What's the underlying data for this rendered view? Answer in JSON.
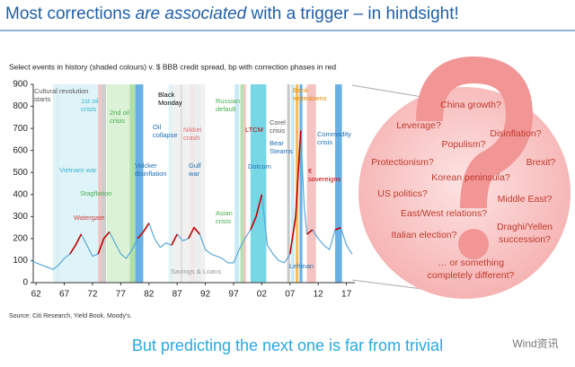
{
  "header": {
    "title": [
      "Most corrections ",
      "are associated",
      " with a trigger – in hindsight!"
    ]
  },
  "chart_data": {
    "type": "line",
    "subtitle": "Select events in history (shaded colours) v. $ BBB credit spread, bp with correction phases in red",
    "source": "Source: Citi Research, Yield Book, Moody's.",
    "xlim": [
      1961.5,
      2018.5
    ],
    "xticks": [
      {
        "value": 1962,
        "label": "62"
      },
      {
        "value": 1967,
        "label": "67"
      },
      {
        "value": 1972,
        "label": "72"
      },
      {
        "value": 1977,
        "label": "77"
      },
      {
        "value": 1982,
        "label": "82"
      },
      {
        "value": 1987,
        "label": "87"
      },
      {
        "value": 1992,
        "label": "92"
      },
      {
        "value": 1997,
        "label": "97"
      },
      {
        "value": 2002,
        "label": "02"
      },
      {
        "value": 2007,
        "label": "07"
      },
      {
        "value": 2012,
        "label": "12"
      },
      {
        "value": 2017,
        "label": "17"
      }
    ],
    "ylim": [
      0,
      900
    ],
    "yticks": [
      0,
      100,
      200,
      300,
      400,
      500,
      600,
      700,
      800,
      900
    ],
    "x": [
      1961,
      1962,
      1963,
      1964,
      1965,
      1966,
      1967,
      1968,
      1969,
      1970,
      1971,
      1972,
      1973,
      1974,
      1975,
      1976,
      1977,
      1978,
      1979,
      1980,
      1981,
      1982,
      1983,
      1984,
      1985,
      1986,
      1987,
      1988,
      1989,
      1990,
      1991,
      1992,
      1993,
      1994,
      1995,
      1996,
      1997,
      1998,
      1999,
      2000,
      2001,
      2002,
      2003,
      2004,
      2005,
      2006,
      2007,
      2008,
      2008.9,
      2009.5,
      2010,
      2011,
      2012,
      2013,
      2014,
      2015,
      2016,
      2017,
      2018
    ],
    "series": [
      {
        "color": "#4ea3d6",
        "values": [
          100,
          90,
          80,
          70,
          60,
          80,
          110,
          130,
          170,
          220,
          170,
          120,
          130,
          200,
          230,
          180,
          130,
          110,
          150,
          200,
          230,
          270,
          200,
          160,
          180,
          170,
          220,
          190,
          200,
          250,
          220,
          150,
          130,
          120,
          110,
          90,
          90,
          150,
          200,
          240,
          300,
          400,
          170,
          130,
          100,
          90,
          130,
          300,
          690,
          350,
          220,
          240,
          200,
          170,
          150,
          240,
          250,
          170,
          130
        ]
      },
      {
        "color": "#c00000",
        "values": [
          null,
          null,
          null,
          null,
          null,
          null,
          null,
          130,
          170,
          220,
          null,
          null,
          130,
          200,
          230,
          null,
          null,
          null,
          null,
          200,
          230,
          270,
          null,
          null,
          null,
          170,
          220,
          null,
          200,
          250,
          220,
          null,
          null,
          null,
          null,
          null,
          null,
          null,
          null,
          240,
          300,
          400,
          null,
          null,
          null,
          null,
          130,
          300,
          690,
          null,
          220,
          240,
          null,
          null,
          null,
          240,
          250,
          null,
          null
        ]
      }
    ],
    "bands": [
      {
        "label": [
          "Cultural revolution",
          "starts"
        ],
        "x": [
          1965.7,
          1966.0
        ],
        "color": "#bfbfbf"
      },
      {
        "label": [
          "Vietnam war"
        ],
        "x": [
          1965.0,
          1973.0
        ],
        "color": "#d9f2f7"
      },
      {
        "label": [
          "1st oil",
          "crisis"
        ],
        "x": [
          1973.5,
          1974.4
        ],
        "color": "#c6c6c6"
      },
      {
        "label": [
          "Stagflation"
        ],
        "x": [
          1974.5,
          1980.0
        ],
        "color": "#d5f0d0"
      },
      {
        "label": [
          "2nd oil",
          "crisis"
        ],
        "x": [
          1978.6,
          1979.6
        ],
        "color": "#a8dca0"
      },
      {
        "label": [
          "Watergate"
        ],
        "x": [
          1973.0,
          1973.5
        ],
        "color": "#f4b8b8"
      },
      {
        "label": [
          "Volcker",
          "disinflation"
        ],
        "x": [
          1979.6,
          1981.0
        ],
        "color": "#4fa3e0"
      },
      {
        "label": [
          "Oil",
          "collapse"
        ],
        "x": [
          1985.5,
          1986.3
        ],
        "color": "#d9f2f7"
      },
      {
        "label": [
          "Black",
          "Monday"
        ],
        "x": [
          1987.6,
          1987.9
        ],
        "color": "#555555"
      },
      {
        "label": [
          "Nikkei",
          "crash"
        ],
        "x": [
          1989.3,
          1990.2
        ],
        "color": "#f4b8b8"
      },
      {
        "label": [
          "Gulf",
          "war"
        ],
        "x": [
          1990.3,
          1991.2
        ],
        "color": "#bfe6f5"
      },
      {
        "label": [
          "Savings & Loans"
        ],
        "x": [
          1986.0,
          1992.0
        ],
        "color": "#eeeeee"
      },
      {
        "label": [
          "Russian",
          "default"
        ],
        "x": [
          1998.2,
          1998.8
        ],
        "color": "#a8dca0"
      },
      {
        "label": [
          "Asian",
          "crisis"
        ],
        "x": [
          1997.2,
          1998.0
        ],
        "color": "#bfe6f5"
      },
      {
        "label": [
          "LTCM"
        ],
        "x": [
          1998.8,
          1999.2
        ],
        "color": "#f4b8b8"
      },
      {
        "label": [
          "Dotcom"
        ],
        "x": [
          2000.0,
          2002.8
        ],
        "color": "#5fd0e0"
      },
      {
        "label": [
          "Corel",
          "crisis"
        ],
        "x": [
          2006.5,
          2007.0
        ],
        "color": "#bfbfbf"
      },
      {
        "label": [
          "Bear",
          "Stearns"
        ],
        "x": [
          2007.2,
          2007.8
        ],
        "color": "#bfe6f5"
      },
      {
        "label": [
          "Bank",
          "writedowns"
        ],
        "x": [
          2008.0,
          2008.5
        ],
        "color": "#f5b041"
      },
      {
        "label": [
          "Lehman"
        ],
        "x": [
          2008.7,
          2009.2
        ],
        "color": "#4fa3e0"
      },
      {
        "label": [
          "€",
          "sovereigns"
        ],
        "x": [
          2010.0,
          2011.6
        ],
        "color": "#f4b8b8"
      },
      {
        "label": [
          "Commodity",
          "crisis"
        ],
        "x": [
          2015.0,
          2016.2
        ],
        "color": "#4fa3e0"
      }
    ]
  },
  "bubble": {
    "items": [
      "China growth?",
      "Leverage?",
      "Disinflation?",
      "Populism?",
      "Protectionism?",
      "Brexit?",
      "Korean peninsula?",
      "US politics?",
      "Middle East?",
      "East/West relations?",
      "Draghi/Yellen",
      "succession?",
      "Italian election?",
      "… or something",
      "completely different?"
    ]
  },
  "footer": {
    "text": "But predicting the next one is far from trivial",
    "watermark": "Wind资讯"
  }
}
